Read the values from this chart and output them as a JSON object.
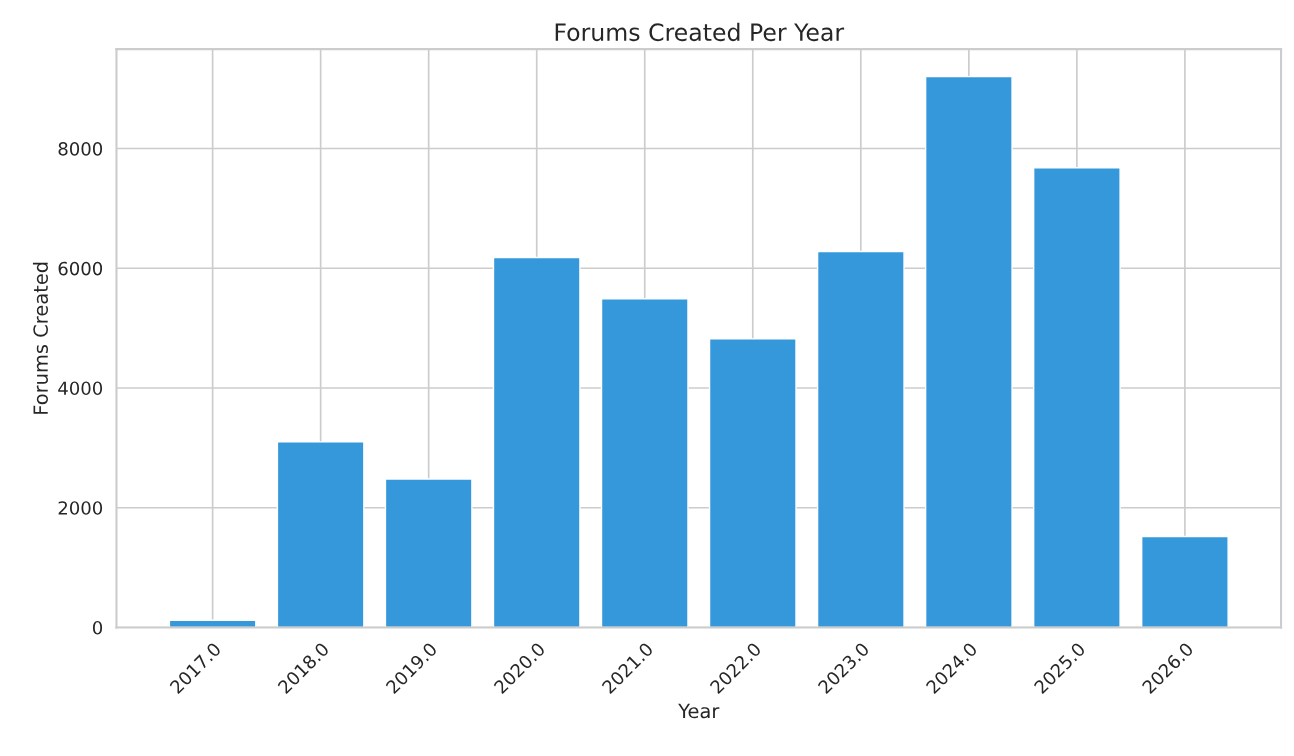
{
  "chart_data": {
    "type": "bar",
    "title": "Forums Created Per Year",
    "xlabel": "Year",
    "ylabel": "Forums Created",
    "x": [
      2017,
      2018,
      2019,
      2020,
      2021,
      2022,
      2023,
      2024,
      2025,
      2026
    ],
    "values": [
      120,
      3100,
      2480,
      6180,
      5490,
      4820,
      6280,
      9200,
      7680,
      1520
    ],
    "color": "#3498db",
    "xlim": [
      2016.11,
      2026.89
    ],
    "xticks": [
      {
        "value": 2017,
        "label": "2017.0"
      },
      {
        "value": 2018,
        "label": "2018.0"
      },
      {
        "value": 2019,
        "label": "2019.0"
      },
      {
        "value": 2020,
        "label": "2020.0"
      },
      {
        "value": 2021,
        "label": "2021.0"
      },
      {
        "value": 2022,
        "label": "2022.0"
      },
      {
        "value": 2023,
        "label": "2023.0"
      },
      {
        "value": 2024,
        "label": "2024.0"
      },
      {
        "value": 2025,
        "label": "2025.0"
      },
      {
        "value": 2026,
        "label": "2026.0"
      }
    ],
    "ylim": [
      0,
      9660
    ],
    "yticks": [
      0,
      2000,
      4000,
      6000,
      8000
    ],
    "grid": true
  }
}
